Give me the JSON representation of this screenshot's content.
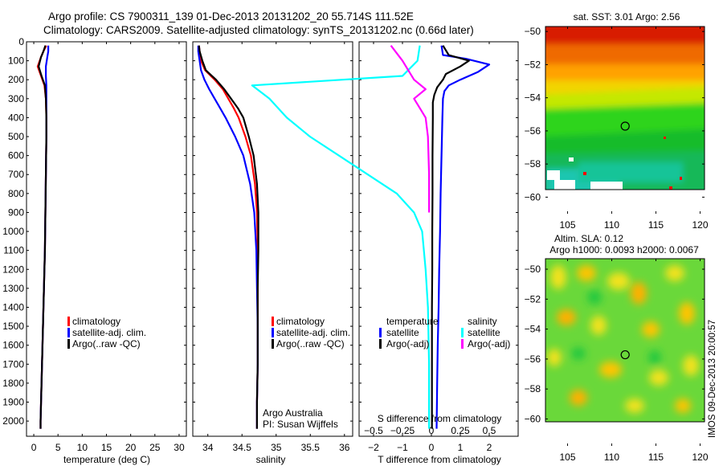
{
  "header": {
    "line1": "Argo profile: CS 7900311_139 01-Dec-2013 20131202_20 55.714S 111.52E",
    "line2": "Climatology: CARS2009. Satellite-adjusted climatology: synTS_20131202.nc (0.66d later)"
  },
  "side_stamp": "IMOS 09-Dec-2013 20:00:57",
  "colors": {
    "climatology": "#ff0000",
    "satellite": "#0000ff",
    "argo": "#000000",
    "salinity_satellite": "#00ffff",
    "salinity_argo": "#ff00ff"
  },
  "chart_data": [
    {
      "id": "temperature",
      "type": "line",
      "xlabel": "temperature (deg C)",
      "ylabel": "",
      "xlim": [
        -1.5,
        31.5
      ],
      "ylim": [
        2080,
        0
      ],
      "xticks": [
        0,
        5,
        10,
        15,
        20,
        25,
        30
      ],
      "yticks": [
        0,
        100,
        200,
        300,
        400,
        500,
        600,
        700,
        800,
        900,
        1000,
        1100,
        1200,
        1300,
        1400,
        1500,
        1600,
        1700,
        1800,
        1900,
        2000
      ],
      "legend": [
        "climatology",
        "satellite-adj. clim.",
        "Argo(..raw -QC)"
      ],
      "series": [
        {
          "name": "climatology",
          "color": "#ff0000",
          "x": [
            2.6,
            2.0,
            1.5,
            0.8,
            1.5,
            2.2,
            2.5,
            2.6,
            2.6,
            2.5,
            2.4,
            2.3,
            2.1,
            1.9,
            1.7,
            1.6,
            1.5,
            1.4,
            1.4
          ],
          "y": [
            20,
            50,
            80,
            130,
            180,
            230,
            300,
            400,
            500,
            700,
            900,
            1100,
            1300,
            1500,
            1700,
            1800,
            1900,
            2000,
            2040
          ]
        },
        {
          "name": "satellite-adj. clim.",
          "color": "#0000ff",
          "x": [
            3.0,
            3.0,
            2.8,
            2.5,
            2.5,
            2.6,
            2.6,
            2.6,
            2.6,
            2.5,
            2.4,
            2.3,
            2.1,
            1.9,
            1.7,
            1.6,
            1.5,
            1.4,
            1.4
          ],
          "y": [
            20,
            50,
            80,
            130,
            180,
            230,
            300,
            400,
            500,
            700,
            900,
            1100,
            1300,
            1500,
            1700,
            1800,
            1900,
            2000,
            2040
          ]
        },
        {
          "name": "Argo(..raw -QC)",
          "color": "#000000",
          "x": [
            2.4,
            2.0,
            1.5,
            1.0,
            1.6,
            2.3,
            2.5,
            2.6,
            2.6,
            2.5,
            2.4,
            2.3,
            2.1,
            1.9,
            1.7,
            1.6,
            1.5,
            1.4,
            1.4
          ],
          "y": [
            20,
            50,
            80,
            130,
            180,
            230,
            300,
            400,
            500,
            700,
            900,
            1100,
            1300,
            1500,
            1700,
            1800,
            1900,
            2000,
            2040
          ]
        }
      ]
    },
    {
      "id": "salinity",
      "type": "line",
      "xlabel": "salinity",
      "ylabel": "",
      "xlim": [
        33.78,
        36.12
      ],
      "ylim": [
        2080,
        0
      ],
      "xticks": [
        34,
        34.5,
        35,
        35.5,
        36
      ],
      "xticklabels": [
        "34",
        "34.5",
        "35",
        "35.5",
        "36"
      ],
      "legend": [
        "climatology",
        "satellite-adj. clim.",
        "Argo(..raw -QC)"
      ],
      "annotations": [
        "Argo Australia",
        "PI: Susan Wijffels"
      ],
      "series": [
        {
          "name": "climatology",
          "color": "#ff0000",
          "x": [
            33.87,
            33.88,
            33.9,
            33.96,
            34.1,
            34.22,
            34.3,
            34.38,
            34.45,
            34.55,
            34.63,
            34.69,
            34.72,
            34.73,
            34.73,
            34.73,
            34.73,
            34.72,
            34.72
          ],
          "y": [
            20,
            50,
            100,
            150,
            200,
            250,
            300,
            350,
            400,
            500,
            600,
            750,
            900,
            1100,
            1300,
            1500,
            1700,
            1900,
            2040
          ]
        },
        {
          "name": "satellite-adj. clim.",
          "color": "#0000ff",
          "x": [
            33.86,
            33.86,
            33.88,
            33.9,
            33.95,
            34.02,
            34.1,
            34.18,
            34.26,
            34.4,
            34.52,
            34.62,
            34.68,
            34.71,
            34.72,
            34.73,
            34.73,
            34.72,
            34.72
          ],
          "y": [
            20,
            50,
            100,
            150,
            200,
            250,
            300,
            350,
            400,
            500,
            600,
            750,
            900,
            1100,
            1300,
            1500,
            1700,
            1900,
            2040
          ]
        },
        {
          "name": "Argo(..raw -QC)",
          "color": "#000000",
          "x": [
            33.87,
            33.88,
            33.92,
            33.97,
            34.12,
            34.24,
            34.34,
            34.44,
            34.52,
            34.6,
            34.67,
            34.72,
            34.74,
            34.74,
            34.73,
            34.73,
            34.73,
            34.72,
            34.72
          ],
          "y": [
            20,
            50,
            100,
            150,
            200,
            250,
            300,
            350,
            400,
            500,
            600,
            750,
            900,
            1100,
            1300,
            1500,
            1700,
            1900,
            2040
          ]
        }
      ]
    },
    {
      "id": "difference",
      "type": "line",
      "xlabel": "T difference from climatology",
      "top_label": "S difference from climatology",
      "xlim": [
        -2.5,
        3.0
      ],
      "ylim": [
        2080,
        0
      ],
      "xticks": [
        -2,
        -1,
        0,
        1,
        2
      ],
      "xticklabels": [
        "−2",
        "−1",
        "0",
        "1",
        "2"
      ],
      "sticks": [
        -0.5,
        -0.25,
        0,
        0.25,
        0.5
      ],
      "sticklabels": [
        "−0.5",
        "−0.25",
        "0",
        "0.25",
        "0.5"
      ],
      "legend_titles": [
        "temperature",
        "salinity"
      ],
      "legend": [
        "satellite",
        "Argo(-adj)",
        "satellite",
        "Argo(-adj)"
      ],
      "series": [
        {
          "name": "temperature satellite",
          "color": "#0000ff",
          "x": [
            0.35,
            0.4,
            1.2,
            2.0,
            1.6,
            1.0,
            0.6,
            0.45,
            0.4,
            0.38,
            0.35,
            0.32,
            0.3,
            0.27,
            0.25,
            0.22,
            0.2,
            0.18
          ],
          "y": [
            20,
            70,
            90,
            120,
            160,
            200,
            230,
            260,
            300,
            400,
            600,
            800,
            1000,
            1200,
            1400,
            1600,
            1800,
            2040
          ]
        },
        {
          "name": "temperature Argo(-adj)",
          "color": "#000000",
          "x": [
            0.4,
            0.6,
            1.3,
            1.0,
            0.5,
            0.4,
            0.2,
            0.1,
            0.05,
            0.05,
            0.04,
            0.04,
            0.03,
            0.03,
            0.02,
            0.02,
            0.02,
            0.02
          ],
          "y": [
            20,
            70,
            100,
            130,
            170,
            200,
            240,
            280,
            320,
            400,
            600,
            800,
            1000,
            1200,
            1400,
            1600,
            1800,
            2040
          ]
        },
        {
          "name": "salinity satellite",
          "color": "#00ffff",
          "x": [
            -0.1,
            -0.12,
            -0.25,
            -1.55,
            -1.4,
            -1.25,
            -1.05,
            -0.8,
            -0.55,
            -0.3,
            -0.15,
            -0.08,
            -0.05,
            -0.03,
            -0.02,
            -0.02
          ],
          "y": [
            20,
            100,
            180,
            230,
            300,
            400,
            500,
            600,
            700,
            800,
            900,
            1000,
            1200,
            1400,
            1700,
            2040
          ]
        },
        {
          "name": "salinity Argo(-adj)",
          "color": "#ff00ff",
          "x": [
            -0.35,
            -0.25,
            -0.15,
            -0.05,
            -0.15,
            -0.1,
            -0.05,
            -0.03,
            -0.02,
            -0.02
          ],
          "y": [
            20,
            100,
            200,
            250,
            300,
            350,
            400,
            500,
            700,
            900
          ]
        }
      ]
    },
    {
      "id": "sst_map",
      "type": "heatmap",
      "title": "sat. SST: 3.01  Argo: 2.56",
      "xlim": [
        102.5,
        120.5
      ],
      "ylim": [
        -61,
        -49.7
      ],
      "xticks": [
        105,
        110,
        115,
        120
      ],
      "yticks": [
        -50,
        -52,
        -54,
        -56,
        -58,
        -60
      ],
      "argo_position": {
        "lon": 111.52,
        "lat": -55.714
      }
    },
    {
      "id": "sla_map",
      "type": "heatmap",
      "title_line1": "Altim. SLA: 0.12",
      "title_line2": "Argo h1000: 0.0093 h2000: 0.0067",
      "xlim": [
        102.5,
        120.5
      ],
      "ylim": [
        -61.8,
        -49.3
      ],
      "xticks": [
        105,
        110,
        115,
        120
      ],
      "yticks": [
        -50,
        -52,
        -54,
        -56,
        -58,
        -60
      ],
      "argo_position": {
        "lon": 111.52,
        "lat": -55.714
      }
    }
  ]
}
